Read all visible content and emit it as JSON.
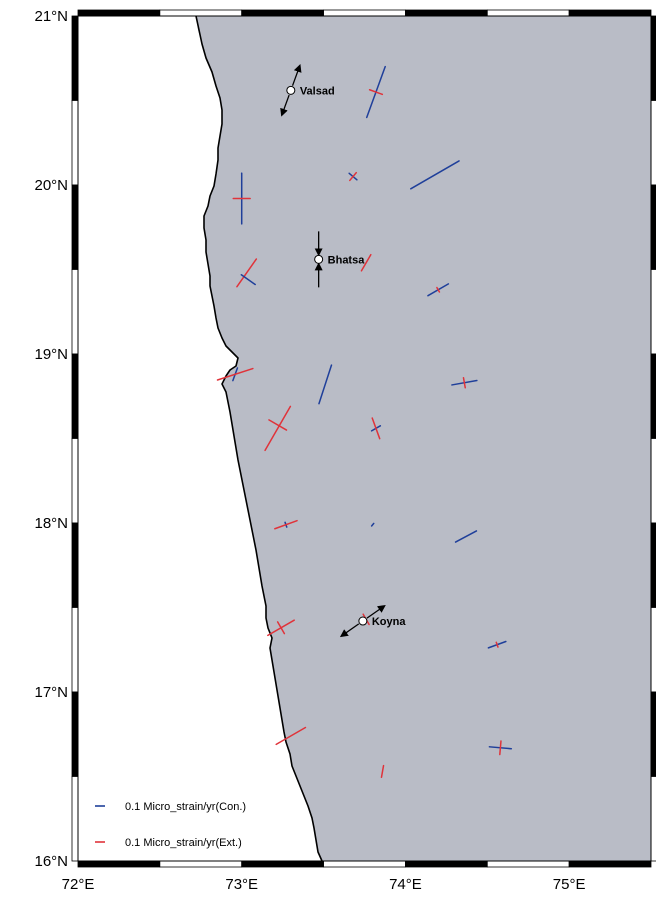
{
  "map": {
    "lon_range": [
      72,
      75.5
    ],
    "lat_range": [
      16,
      21
    ],
    "land_color": "#b9bcc6",
    "sea_color": "#ffffff",
    "coast_color": "#000000",
    "con_color": "#1f3f9a",
    "ext_color": "#e0333a"
  },
  "axes": {
    "lat_ticks": [
      {
        "value": 21,
        "label": "21°N"
      },
      {
        "value": 20,
        "label": "20°N"
      },
      {
        "value": 19,
        "label": "19°N"
      },
      {
        "value": 18,
        "label": "18°N"
      },
      {
        "value": 17,
        "label": "17°N"
      },
      {
        "value": 16,
        "label": "16°N"
      }
    ],
    "lon_ticks": [
      {
        "value": 72,
        "label": "72°E"
      },
      {
        "value": 73,
        "label": "73°E"
      },
      {
        "value": 74,
        "label": "74°E"
      },
      {
        "value": 75,
        "label": "75°E"
      }
    ]
  },
  "sites": [
    {
      "name": "Valsad",
      "lon": 73.3,
      "lat": 20.56,
      "arrows": "extension",
      "az": 20
    },
    {
      "name": "Bhatsa",
      "lon": 73.47,
      "lat": 19.56,
      "arrows": "compression",
      "az": 0
    },
    {
      "name": "Koyna",
      "lon": 73.74,
      "lat": 17.42,
      "arrows": "extension",
      "az": 55
    }
  ],
  "strain_crosses": [
    {
      "lon": 73.82,
      "lat": 20.55,
      "con_len": 0.32,
      "con_az": 20,
      "ext_len": 0.08,
      "ext_az": 110
    },
    {
      "lon": 73.68,
      "lat": 20.05,
      "con_len": 0.06,
      "con_az": 130,
      "ext_len": 0.06,
      "ext_az": 40
    },
    {
      "lon": 74.18,
      "lat": 20.06,
      "con_len": 0.33,
      "con_az": 60,
      "ext_len": 0.0,
      "ext_az": 150
    },
    {
      "lon": 73.0,
      "lat": 19.92,
      "con_len": 0.3,
      "con_az": 0,
      "ext_len": 0.1,
      "ext_az": 90
    },
    {
      "lon": 73.76,
      "lat": 19.54,
      "con_len": 0.0,
      "con_az": 0,
      "ext_len": 0.11,
      "ext_az": 30
    },
    {
      "lon": 73.03,
      "lat": 19.48,
      "con_len": 0.0,
      "con_az": 0,
      "ext_len": 0.2,
      "ext_az": 35
    },
    {
      "lon": 73.04,
      "lat": 19.44,
      "con_len": 0.1,
      "con_az": 125,
      "ext_len": 0.0,
      "ext_az": 0
    },
    {
      "lon": 74.2,
      "lat": 19.38,
      "con_len": 0.14,
      "con_az": 60,
      "ext_len": 0.03,
      "ext_az": 150
    },
    {
      "lon": 73.51,
      "lat": 18.82,
      "con_len": 0.24,
      "con_az": 18,
      "ext_len": 0.0,
      "ext_az": 0
    },
    {
      "lon": 72.96,
      "lat": 18.88,
      "con_len": 0.08,
      "con_az": 20,
      "ext_len": 0.22,
      "ext_az": 72
    },
    {
      "lon": 74.36,
      "lat": 18.83,
      "con_len": 0.15,
      "con_az": 80,
      "ext_len": 0.06,
      "ext_az": 170
    },
    {
      "lon": 73.22,
      "lat": 18.56,
      "con_len": 0.0,
      "con_az": 0,
      "ext_len": 0.3,
      "ext_az": 30
    },
    {
      "lon": 73.22,
      "lat": 18.58,
      "con_len": 0.0,
      "con_az": 0,
      "ext_len": 0.12,
      "ext_az": 120
    },
    {
      "lon": 73.82,
      "lat": 18.56,
      "con_len": 0.06,
      "con_az": 60,
      "ext_len": 0.13,
      "ext_az": 160
    },
    {
      "lon": 73.27,
      "lat": 17.99,
      "con_len": 0.03,
      "con_az": 160,
      "ext_len": 0.14,
      "ext_az": 70
    },
    {
      "lon": 73.8,
      "lat": 17.99,
      "con_len": 0.02,
      "con_az": 40,
      "ext_len": 0.0,
      "ext_az": 0
    },
    {
      "lon": 74.37,
      "lat": 17.92,
      "con_len": 0.14,
      "con_az": 62,
      "ext_len": 0.0,
      "ext_az": 0
    },
    {
      "lon": 73.24,
      "lat": 17.38,
      "con_len": 0.0,
      "con_az": 0,
      "ext_len": 0.18,
      "ext_az": 60
    },
    {
      "lon": 73.24,
      "lat": 17.38,
      "con_len": 0.0,
      "con_az": 0,
      "ext_len": 0.08,
      "ext_az": 150
    },
    {
      "lon": 73.76,
      "lat": 17.43,
      "con_len": 0.0,
      "con_az": 0,
      "ext_len": 0.07,
      "ext_az": 150
    },
    {
      "lon": 74.56,
      "lat": 17.28,
      "con_len": 0.11,
      "con_az": 70,
      "ext_len": 0.03,
      "ext_az": 160
    },
    {
      "lon": 73.3,
      "lat": 16.74,
      "con_len": 0.0,
      "con_az": 0,
      "ext_len": 0.2,
      "ext_az": 60
    },
    {
      "lon": 74.58,
      "lat": 16.67,
      "con_len": 0.13,
      "con_az": 95,
      "ext_len": 0.08,
      "ext_az": 5
    },
    {
      "lon": 73.86,
      "lat": 16.53,
      "con_len": 0.0,
      "con_az": 0,
      "ext_len": 0.07,
      "ext_az": 10
    }
  ],
  "legend": {
    "items": [
      {
        "type": "con",
        "label": "0.1 Micro_strain/yr(Con.)"
      },
      {
        "type": "ext",
        "label": "0.1 Micro_strain/yr(Ext.)"
      }
    ]
  }
}
